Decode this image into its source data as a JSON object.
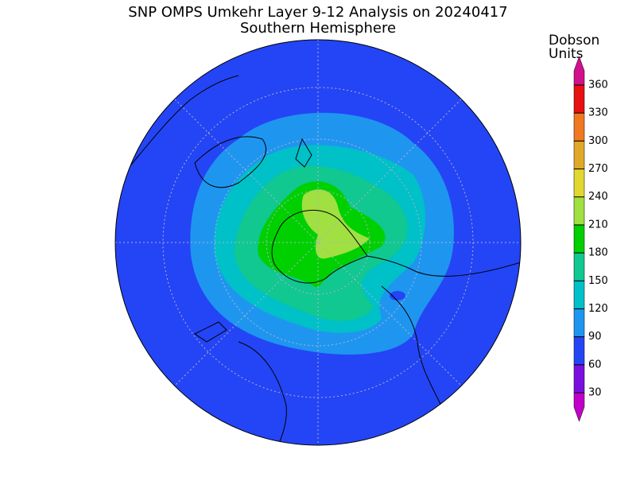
{
  "title": "SNP OMPS Umkehr Layer 9-12 Analysis on 20240417",
  "subtitle": "Southern Hemisphere",
  "legend": {
    "title": [
      "Dobson",
      "Units"
    ],
    "ticks": [
      30,
      60,
      90,
      120,
      150,
      180,
      210,
      240,
      270,
      300,
      330,
      360
    ],
    "colors": [
      "#c000c8",
      "#7a10e0",
      "#2445f5",
      "#1e96f0",
      "#00c0c8",
      "#10c890",
      "#00d000",
      "#a0e040",
      "#e0d830",
      "#e0a828",
      "#f07820",
      "#e81010",
      "#d0108c"
    ]
  }
}
